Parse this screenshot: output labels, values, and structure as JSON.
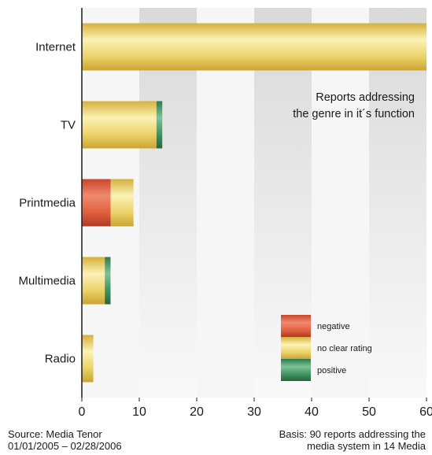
{
  "chart_data": {
    "type": "bar",
    "orientation": "horizontal",
    "stacked": true,
    "categories": [
      "Internet",
      "TV",
      "Printmedia",
      "Multimedia",
      "Radio"
    ],
    "series": [
      {
        "name": "negative",
        "color": "#e06040",
        "values": [
          0,
          0,
          5,
          0,
          0
        ]
      },
      {
        "name": "no clear rating",
        "color": "#eccd5a",
        "values": [
          60,
          13,
          4,
          4,
          2
        ]
      },
      {
        "name": "positive",
        "color": "#3f9361",
        "values": [
          0,
          1,
          0,
          1,
          0
        ]
      }
    ],
    "xticks": [
      "0",
      "10",
      "20",
      "30",
      "40",
      "50",
      "60"
    ],
    "xlim": [
      0,
      60
    ],
    "annotation": [
      "Reports addressing",
      "the genre in it´s function"
    ],
    "legend_position": "bottom-right",
    "background": "alternating vertical bands"
  },
  "footer": {
    "source_line1": "Source: Media Tenor",
    "source_line2": "01/01/2005 – 02/28/2006",
    "basis_line1": "Basis: 90 reports addressing the",
    "basis_line2": "media system in 14 Media"
  }
}
